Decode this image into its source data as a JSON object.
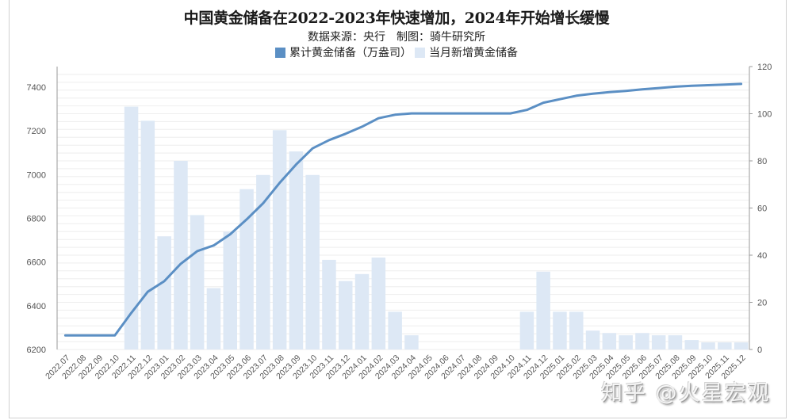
{
  "chart_data": {
    "type": "bar+line",
    "title": "中国黄金储备在2022-2023年快速增加，2024年开始增长缓慢",
    "subtitle": "数据来源：央行　制图：骑牛研究所",
    "categories": [
      "2022.07",
      "2022.08",
      "2022.09",
      "2022.10",
      "2022.11",
      "2022.12",
      "2023.01",
      "2023.02",
      "2023.03",
      "2023.04",
      "2023.05",
      "2023.06",
      "2023.07",
      "2023.08",
      "2023.09",
      "2023.10",
      "2023.11",
      "2023.12",
      "2024.01",
      "2024.02",
      "2024.03",
      "2024.04",
      "2024.05",
      "2024.06",
      "2024.07",
      "2024.08",
      "2024.09",
      "2024.10",
      "2024.11",
      "2024.12",
      "2025.01",
      "2025.02",
      "2025.03",
      "2025.04",
      "2025.05",
      "2025.06",
      "2025.07",
      "2025.08",
      "2025.09",
      "2025.10",
      "2025.11",
      "2025.12"
    ],
    "series": [
      {
        "name": "累计黄金储备（万盎司）",
        "type": "line",
        "axis": "left",
        "color": "#5b8fc4",
        "values": [
          6264,
          6264,
          6264,
          6264,
          6367,
          6464,
          6512,
          6592,
          6650,
          6676,
          6727,
          6795,
          6869,
          6962,
          7046,
          7120,
          7158,
          7187,
          7219,
          7258,
          7274,
          7280,
          7280,
          7280,
          7280,
          7280,
          7280,
          7280,
          7296,
          7329,
          7345,
          7361,
          7370,
          7377,
          7383,
          7390,
          7396,
          7402,
          7406,
          7409,
          7412,
          7415
        ]
      },
      {
        "name": "当月新增黄金储备",
        "type": "bar",
        "axis": "right",
        "color": "#dde8f5",
        "values": [
          0,
          0,
          0,
          0,
          103,
          97,
          48,
          80,
          57,
          26,
          50,
          68,
          74,
          93,
          84,
          74,
          38,
          29,
          32,
          39,
          16,
          6,
          0,
          0,
          0,
          0,
          0,
          0,
          16,
          33,
          16,
          16,
          8,
          7,
          6,
          7,
          6,
          6,
          4,
          3,
          3,
          3
        ]
      }
    ],
    "left_axis": {
      "min": 6200,
      "max": 7500,
      "ticks": [
        6200,
        6400,
        6600,
        6800,
        7000,
        7200,
        7400
      ]
    },
    "right_axis": {
      "min": 0,
      "max": 120,
      "ticks": [
        0,
        20,
        40,
        60,
        80,
        100,
        120
      ]
    },
    "grid": true,
    "legend_position": "top"
  },
  "watermark": "知乎 @火星宏观"
}
